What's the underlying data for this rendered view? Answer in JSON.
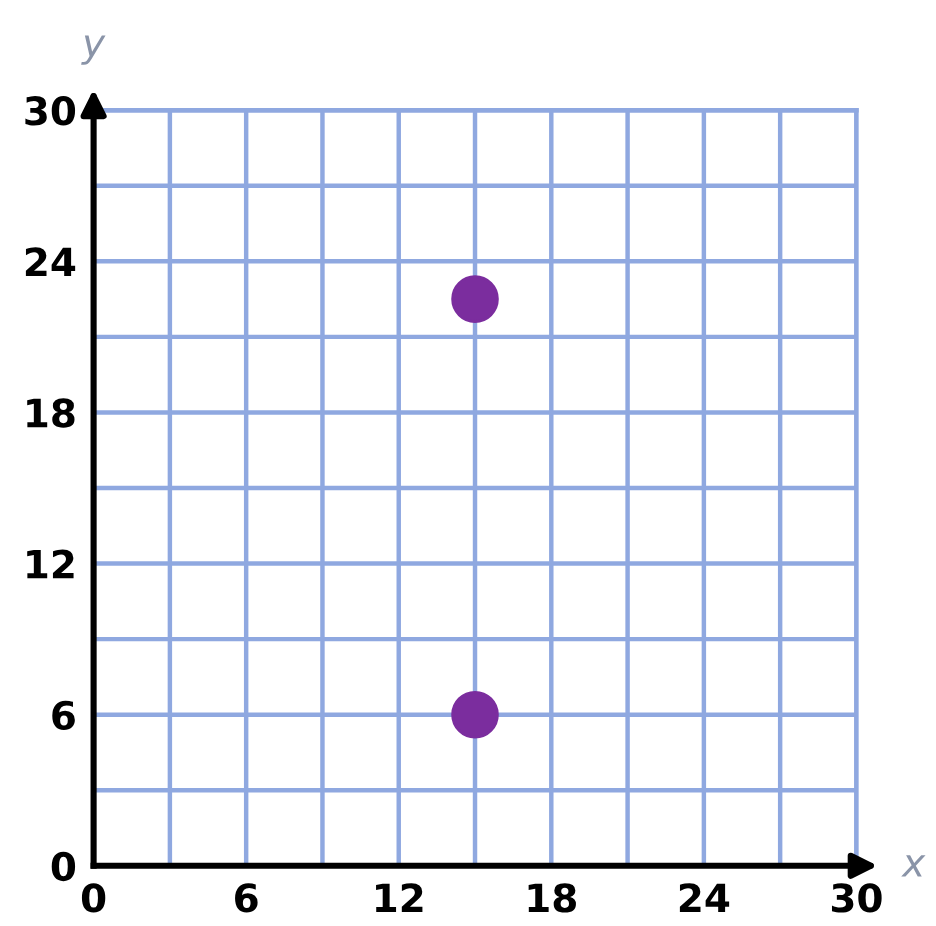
{
  "chart_data": {
    "type": "scatter",
    "xlabel": "x",
    "ylabel": "y",
    "x": [
      15,
      15
    ],
    "values": [
      22.5,
      6
    ],
    "color": "#7b2d9e",
    "marker": "circle",
    "xlim": [
      0,
      30
    ],
    "ylim": [
      0,
      30
    ],
    "xticks": [
      0,
      {
        "value": 3,
        "label": null
      },
      6,
      {
        "value": 9,
        "label": null
      },
      12,
      {
        "value": 15,
        "label": null
      },
      18,
      {
        "value": 21,
        "label": null
      },
      24,
      {
        "value": 27,
        "label": null
      },
      30
    ],
    "yticks": [
      0,
      {
        "value": 3,
        "label": null
      },
      6,
      {
        "value": 9,
        "label": null
      },
      12,
      {
        "value": 15,
        "label": null
      },
      18,
      {
        "value": 21,
        "label": null
      },
      24,
      {
        "value": 27,
        "label": null
      },
      30
    ],
    "grid": true
  }
}
